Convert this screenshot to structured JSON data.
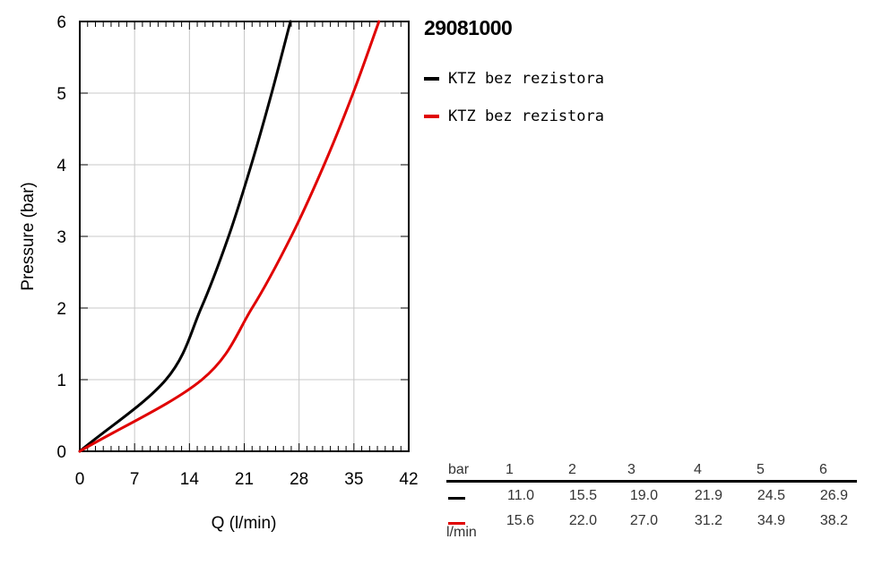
{
  "title": "29081000",
  "legend": [
    {
      "label": "KTZ bez rezistora",
      "color": "#000000"
    },
    {
      "label": "KTZ bez rezistora",
      "color": "#e00000"
    }
  ],
  "chart_data": {
    "type": "line",
    "xlabel": "Q (l/min)",
    "ylabel": "Pressure (bar)",
    "xlim": [
      0,
      42
    ],
    "ylim": [
      0,
      6
    ],
    "x_ticks": [
      "0",
      "7",
      "14",
      "21",
      "28",
      "35",
      "42"
    ],
    "y_ticks": [
      "0",
      "1",
      "2",
      "3",
      "4",
      "5",
      "6"
    ],
    "grid": true,
    "legend_position": "right",
    "series": [
      {
        "name": "KTZ bez rezistora",
        "color": "#000000",
        "x": [
          0,
          11.0,
          15.5,
          19.0,
          21.9,
          24.5,
          26.9
        ],
        "y": [
          0,
          1,
          2,
          3,
          4,
          5,
          6
        ]
      },
      {
        "name": "KTZ bez rezistora",
        "color": "#e00000",
        "x": [
          0,
          15.6,
          22.0,
          27.0,
          31.2,
          34.9,
          38.2
        ],
        "y": [
          0,
          1,
          2,
          3,
          4,
          5,
          6
        ]
      }
    ]
  },
  "table": {
    "header_label": "bar",
    "unit_label": "l/min",
    "pressures": [
      "1",
      "2",
      "3",
      "4",
      "5",
      "6"
    ],
    "rows": [
      {
        "color": "#000000",
        "values": [
          "11.0",
          "15.5",
          "19.0",
          "21.9",
          "24.5",
          "26.9"
        ]
      },
      {
        "color": "#e00000",
        "values": [
          "15.6",
          "22.0",
          "27.0",
          "31.2",
          "34.9",
          "38.2"
        ]
      }
    ]
  }
}
